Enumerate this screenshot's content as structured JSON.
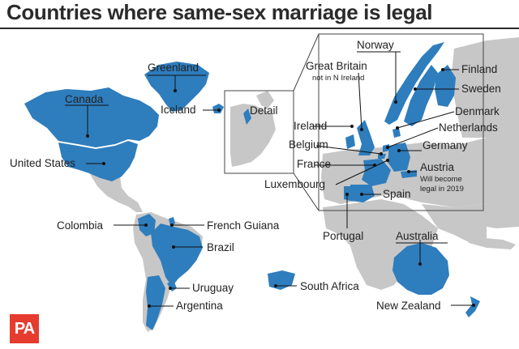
{
  "title": "Countries where same-sex marriage is legal",
  "colors": {
    "legal": "#2e7dbd",
    "land": "#c7c7c7",
    "sea": "#ffffff",
    "logo": "#e53c2f"
  },
  "detail_label": "Detail",
  "logo_text": "PA",
  "countries": {
    "greenland": "Greenland",
    "canada": "Canada",
    "iceland": "Iceland",
    "united_states": "United States",
    "colombia": "Colombia",
    "french_guiana": "French Guiana",
    "brazil": "Brazil",
    "uruguay": "Uruguay",
    "argentina": "Argentina",
    "south_africa": "South Africa",
    "australia": "Australia",
    "new_zealand": "New Zealand",
    "norway": "Norway",
    "finland": "Finland",
    "sweden": "Sweden",
    "denmark": "Denmark",
    "netherlands": "Netherlands",
    "germany": "Germany",
    "great_britain": "Great Britain",
    "great_britain_note": "not in N Ireland",
    "ireland": "Ireland",
    "belgium": "Belgium",
    "france": "France",
    "luxembourg": "Luxembourg",
    "austria": "Austria",
    "austria_note_1": "Will become",
    "austria_note_2": "legal in 2019",
    "spain": "Spain",
    "portugal": "Portugal"
  }
}
